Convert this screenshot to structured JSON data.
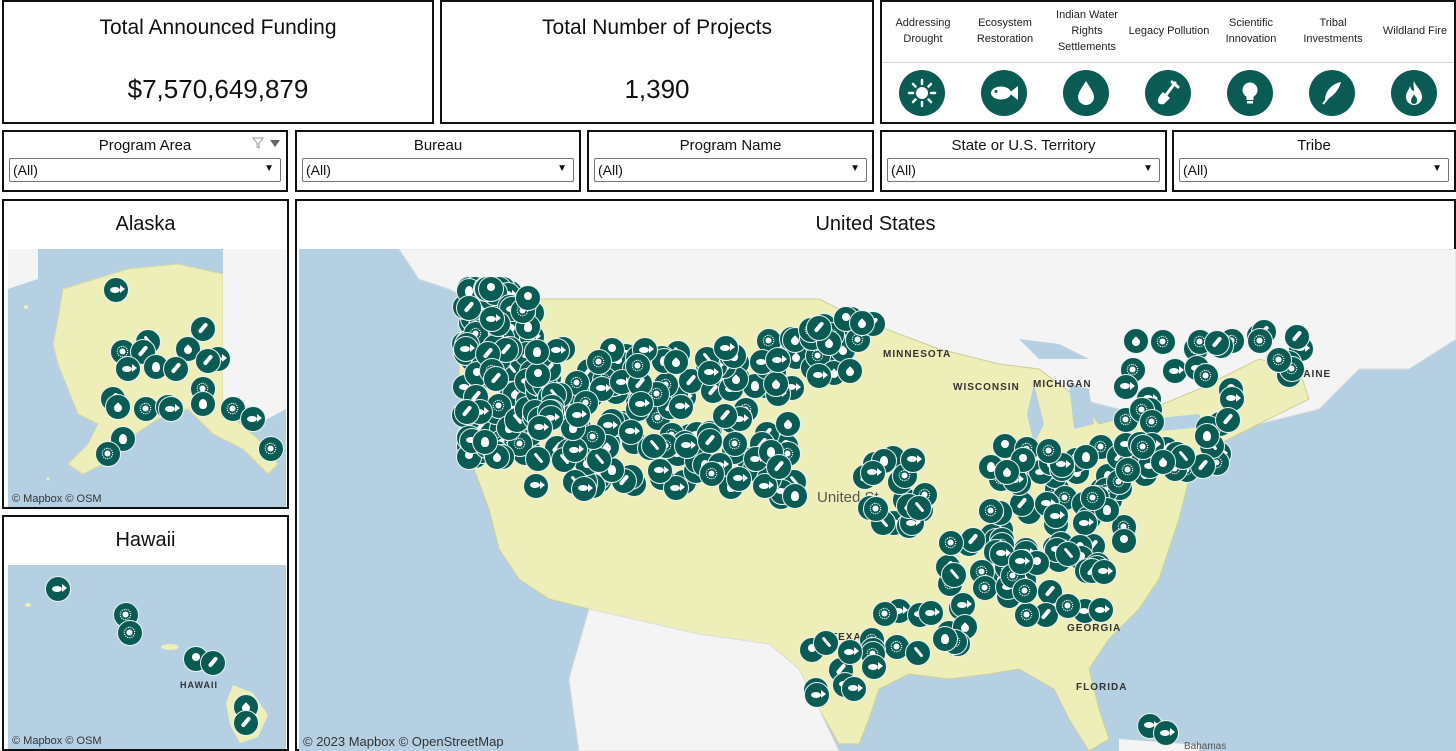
{
  "kpis": {
    "funding": {
      "title": "Total Announced Funding",
      "value": "$7,570,649,879"
    },
    "projects": {
      "title": "Total Number of  Projects",
      "value": "1,390"
    }
  },
  "categories": [
    {
      "label": "Addressing Drought",
      "icon": "sun-icon"
    },
    {
      "label": "Ecosystem Restoration",
      "icon": "fish-icon"
    },
    {
      "label": "Indian Water Rights Settlements",
      "icon": "water-drop-icon"
    },
    {
      "label": "Legacy Pollution",
      "icon": "shovel-icon"
    },
    {
      "label": "Scientific Innovation",
      "icon": "lightbulb-icon"
    },
    {
      "label": "Tribal Investments",
      "icon": "feather-icon"
    },
    {
      "label": "Wildland Fire",
      "icon": "flame-icon"
    }
  ],
  "filters": [
    {
      "label": "Program Area",
      "value": "(All)"
    },
    {
      "label": "Bureau",
      "value": "(All)"
    },
    {
      "label": "Program Name",
      "value": "(All)"
    },
    {
      "label": "State or U.S. Territory",
      "value": "(All)"
    },
    {
      "label": "Tribe",
      "value": "(All)"
    }
  ],
  "maps": {
    "alaska": {
      "title": "Alaska",
      "attribution": "© Mapbox  © OSM"
    },
    "hawaii": {
      "title": "Hawaii",
      "attribution": "© Mapbox  © OSM",
      "labels": [
        "HAWAII"
      ]
    },
    "us": {
      "title": "United States",
      "attribution": "© 2023 Mapbox  © OpenStreetMap",
      "labels": [
        "MINNESOTA",
        "WISCONSIN",
        "MICHIGAN",
        "MAINE",
        "TEXAS",
        "FLORIDA",
        "GEORGIA",
        "United St",
        "Bahamas"
      ]
    }
  },
  "colors": {
    "marker": "#0b5b55",
    "land": "#eeeeb8",
    "water": "#b5d0e3",
    "border": "#111111"
  }
}
